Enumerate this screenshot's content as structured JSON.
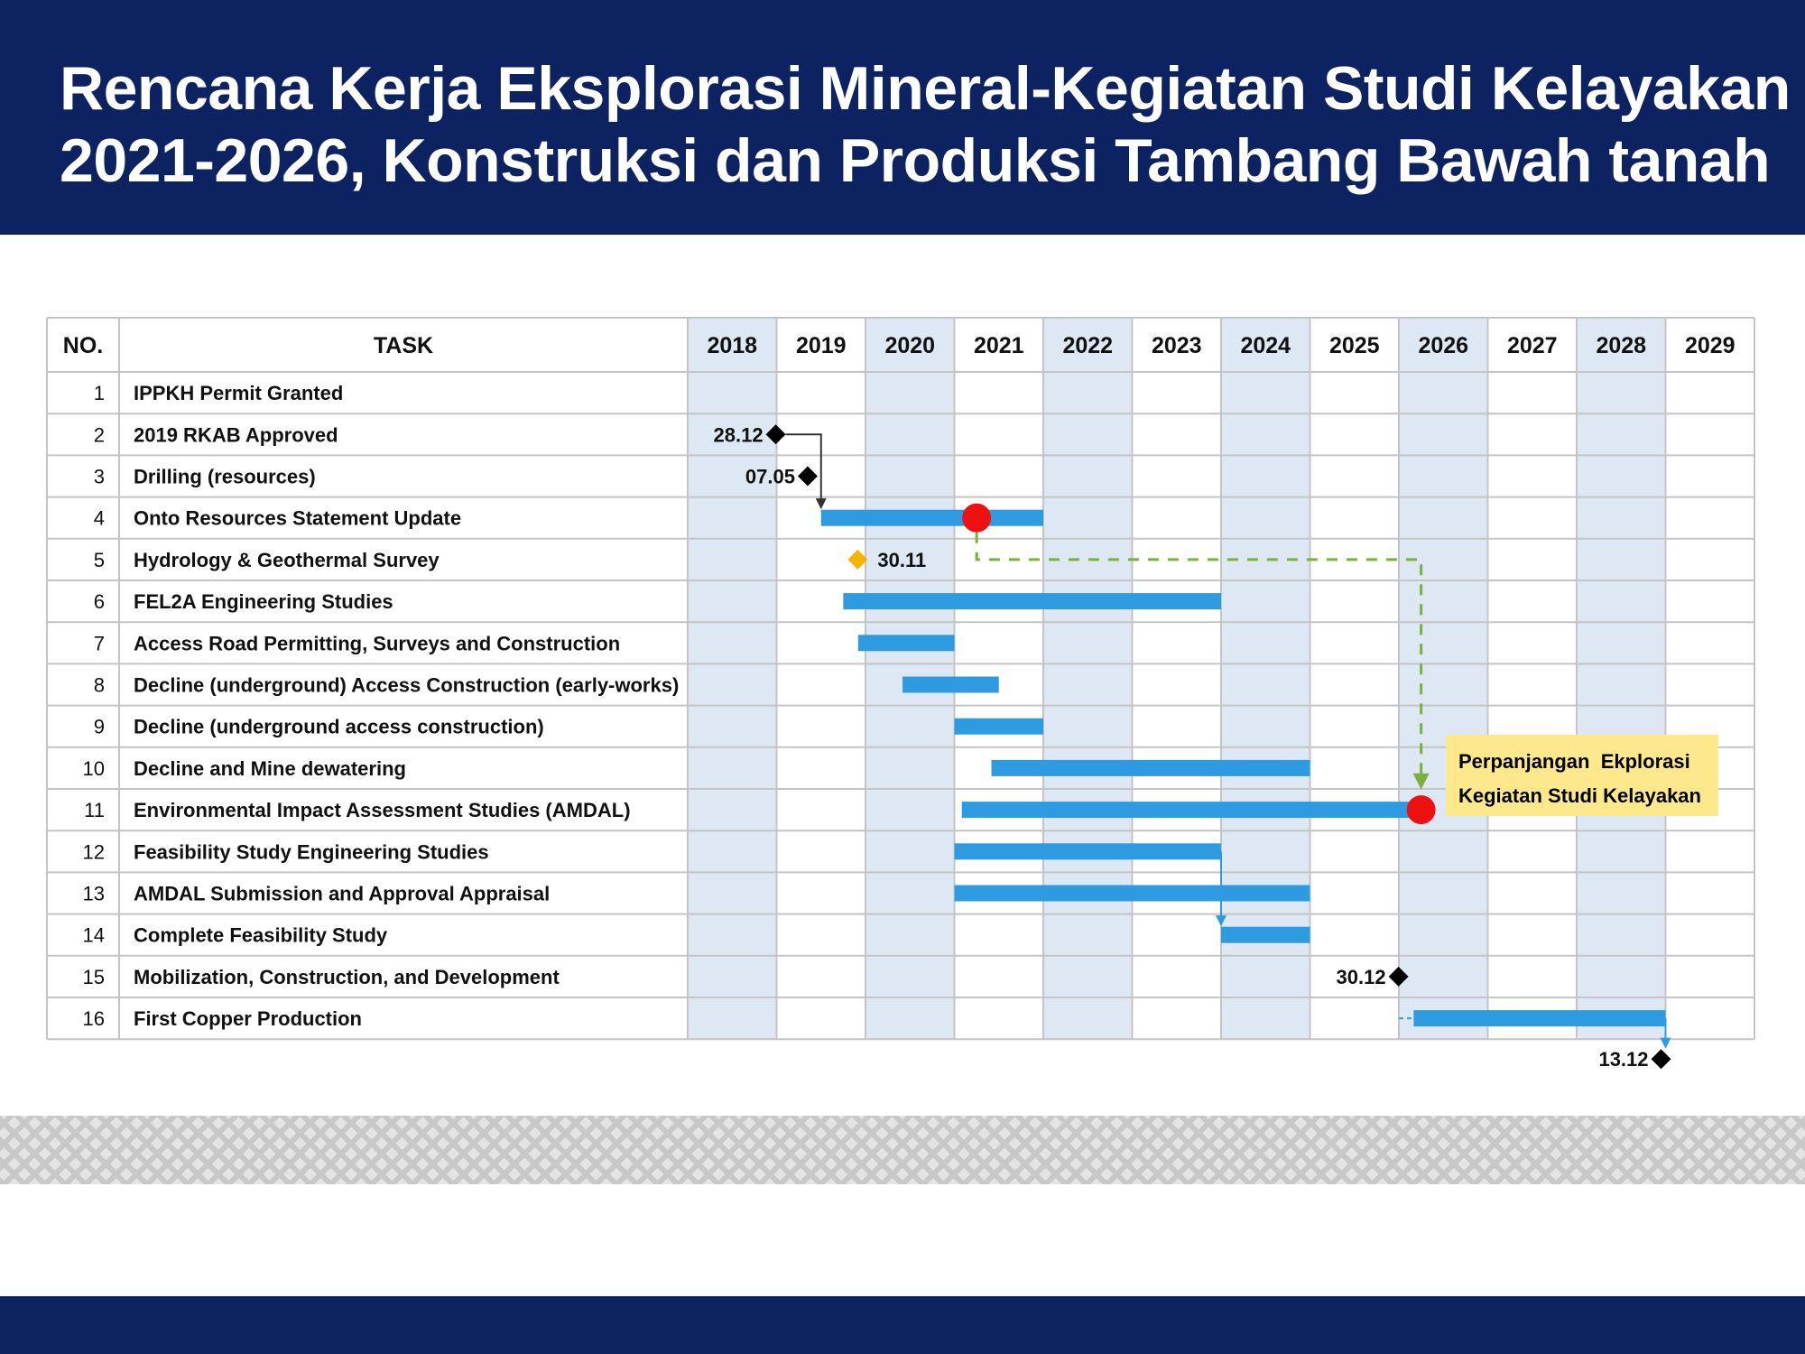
{
  "header": {
    "title_line1": "Rencana Kerja Eksplorasi Mineral-Kegiatan Studi Kelayakan",
    "title_line2": "2021-2026, Konstruksi dan Produksi Tambang Bawah tanah"
  },
  "colors": {
    "navy": "#0d2260",
    "bar": "#2e9be0",
    "shaded_column": "#dde8f4",
    "milestone": "#000000",
    "milestone_yellow": "#f5b400",
    "red_marker": "#ee1111",
    "green_dashed": "#79b13a",
    "callout_bg": "#fde88b"
  },
  "chart_data": {
    "type": "gantt",
    "columns": {
      "no": "NO.",
      "task": "TASK"
    },
    "years": [
      "2018",
      "2019",
      "2020",
      "2021",
      "2022",
      "2023",
      "2024",
      "2025",
      "2026",
      "2027",
      "2028",
      "2029"
    ],
    "shaded_years": [
      "2018",
      "2020",
      "2022",
      "2024",
      "2026",
      "2028"
    ],
    "tasks": [
      {
        "no": "1",
        "name": "IPPKH Permit Granted"
      },
      {
        "no": "2",
        "name": "2019 RKAB Approved",
        "milestone": {
          "at": "2018-12-28",
          "label": "28.12",
          "color": "black"
        }
      },
      {
        "no": "3",
        "name": "Drilling (resources)",
        "milestone": {
          "at": "2019-05-07",
          "label": "07.05",
          "color": "black"
        }
      },
      {
        "no": "4",
        "name": "Onto Resources Statement Update",
        "bar": {
          "start": "2019-07",
          "end": "2021-12"
        }
      },
      {
        "no": "5",
        "name": "Hydrology & Geothermal Survey",
        "milestone": {
          "at": "2019-11-30",
          "label": "30.11",
          "color": "yellow"
        }
      },
      {
        "no": "6",
        "name": "FEL2A Engineering Studies",
        "bar": {
          "start": "2019-10",
          "end": "2023-12"
        }
      },
      {
        "no": "7",
        "name": "Access Road Permitting, Surveys and Construction",
        "bar": {
          "start": "2019-12",
          "end": "2020-12"
        }
      },
      {
        "no": "8",
        "name": "Decline (underground) Access Construction (early-works)",
        "bar": {
          "start": "2020-06",
          "end": "2021-06"
        }
      },
      {
        "no": "9",
        "name": "Decline (underground access construction)",
        "bar": {
          "start": "2021-01",
          "end": "2021-12"
        }
      },
      {
        "no": "10",
        "name": "Decline and Mine dewatering",
        "bar": {
          "start": "2021-06",
          "end": "2024-12"
        }
      },
      {
        "no": "11",
        "name": "Environmental Impact Assessment Studies (AMDAL)",
        "bar": {
          "start": "2021-02",
          "end": "2026-03"
        }
      },
      {
        "no": "12",
        "name": "Feasibility Study Engineering Studies",
        "bar": {
          "start": "2021-01",
          "end": "2023-12"
        }
      },
      {
        "no": "13",
        "name": "AMDAL Submission and Approval Appraisal",
        "bar": {
          "start": "2021-01",
          "end": "2024-12"
        }
      },
      {
        "no": "14",
        "name": "Complete Feasibility Study",
        "bar": {
          "start": "2024-01",
          "end": "2024-12"
        }
      },
      {
        "no": "15",
        "name": "Mobilization, Construction, and Development",
        "milestone": {
          "at": "2025-12-30",
          "label": "30.12",
          "color": "black"
        }
      },
      {
        "no": "16",
        "name": "First Copper Production",
        "bar": {
          "start": "2026-03",
          "end": "2028-12"
        }
      }
    ],
    "end_milestone": {
      "at": "2028-12-13",
      "label": "13.12",
      "color": "black"
    },
    "red_markers": [
      {
        "task": "4",
        "at": "2021-04"
      },
      {
        "task": "11",
        "at": "2026-04"
      }
    ],
    "callout": {
      "line1": "Perpanjangan  Ekplorasi",
      "line2": "Kegiatan Studi Kelayakan"
    }
  }
}
